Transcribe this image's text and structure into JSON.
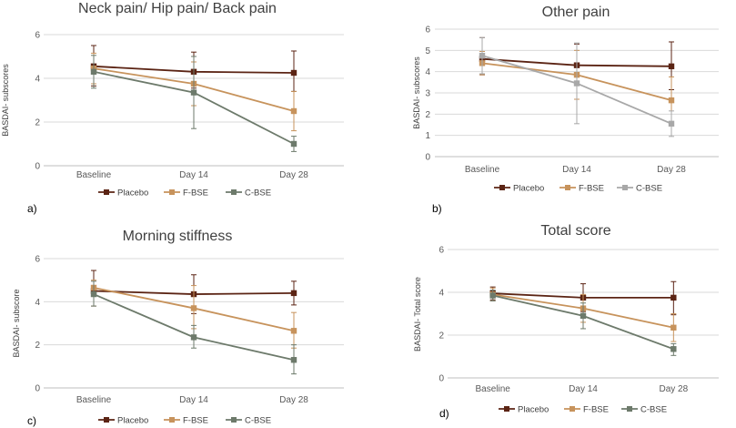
{
  "chart_data": [
    {
      "type": "line",
      "panel_label": "a)",
      "title": "Neck pain/ Hip pain/ Back pain",
      "ylabel": "BASDAI- subscores",
      "xlabel": "",
      "categories": [
        "Baseline",
        "Day 14",
        "Day 28"
      ],
      "ylim": [
        0,
        6
      ],
      "yticks": [
        0,
        2,
        4,
        6
      ],
      "series": [
        {
          "name": "Placebo",
          "color": "#5b2414",
          "values": [
            4.55,
            4.3,
            4.25
          ],
          "err_low": [
            3.65,
            3.55,
            3.4
          ],
          "err_high": [
            5.5,
            5.2,
            5.25
          ]
        },
        {
          "name": "F-BSE",
          "color": "#c7935c",
          "values": [
            4.45,
            3.75,
            2.5
          ],
          "err_low": [
            3.75,
            2.75,
            1.6
          ],
          "err_high": [
            5.15,
            4.75,
            3.4
          ]
        },
        {
          "name": "C-BSE",
          "color": "#6d7a6b",
          "values": [
            4.3,
            3.35,
            1.0
          ],
          "err_low": [
            3.55,
            1.7,
            0.65
          ],
          "err_high": [
            5.05,
            5.0,
            1.35
          ]
        }
      ]
    },
    {
      "type": "line",
      "panel_label": "b)",
      "title": "Other pain",
      "ylabel": "BASDAI- subscores",
      "xlabel": "",
      "categories": [
        "Baseline",
        "Day 14",
        "Day 28"
      ],
      "ylim": [
        0,
        6
      ],
      "yticks": [
        0,
        1,
        2,
        3,
        4,
        5,
        6
      ],
      "series": [
        {
          "name": "Placebo",
          "color": "#5b2414",
          "values": [
            4.6,
            4.3,
            4.25
          ],
          "err_low": [
            3.85,
            3.35,
            3.15
          ],
          "err_high": [
            5.6,
            5.3,
            5.4
          ]
        },
        {
          "name": "F-BSE",
          "color": "#c7935c",
          "values": [
            4.4,
            3.85,
            2.65
          ],
          "err_low": [
            3.85,
            2.7,
            1.55
          ],
          "err_high": [
            4.95,
            5.0,
            3.75
          ]
        },
        {
          "name": "C-BSE",
          "color": "#a8a8a8",
          "values": [
            4.75,
            3.45,
            1.55
          ],
          "err_low": [
            3.9,
            1.55,
            0.95
          ],
          "err_high": [
            5.6,
            5.35,
            2.15
          ]
        }
      ]
    },
    {
      "type": "line",
      "panel_label": "c)",
      "title": "Morning stiffness",
      "ylabel": "BASDAI- subscore",
      "xlabel": "",
      "categories": [
        "Baseline",
        "Day 14",
        "Day 28"
      ],
      "ylim": [
        0,
        6
      ],
      "yticks": [
        0,
        2,
        4,
        6
      ],
      "series": [
        {
          "name": "Placebo",
          "color": "#5b2414",
          "values": [
            4.5,
            4.35,
            4.4
          ],
          "err_low": [
            3.8,
            3.45,
            3.85
          ],
          "err_high": [
            5.45,
            5.25,
            4.95
          ]
        },
        {
          "name": "F-BSE",
          "color": "#c7935c",
          "values": [
            4.65,
            3.7,
            2.65
          ],
          "err_low": [
            3.8,
            2.75,
            1.85
          ],
          "err_high": [
            5.0,
            4.75,
            3.5
          ]
        },
        {
          "name": "C-BSE",
          "color": "#6d7a6b",
          "values": [
            4.35,
            2.35,
            1.3
          ],
          "err_low": [
            3.8,
            1.85,
            0.65
          ],
          "err_high": [
            4.95,
            2.9,
            2.0
          ]
        }
      ]
    },
    {
      "type": "line",
      "panel_label": "d)",
      "title": "Total score",
      "ylabel": "BASDAI- Total score",
      "xlabel": "",
      "categories": [
        "Baseline",
        "Day 14",
        "Day 28"
      ],
      "ylim": [
        0,
        6
      ],
      "yticks": [
        0,
        2,
        4,
        6
      ],
      "series": [
        {
          "name": "Placebo",
          "color": "#5b2414",
          "values": [
            3.95,
            3.75,
            3.75
          ],
          "err_low": [
            3.65,
            3.1,
            2.95
          ],
          "err_high": [
            4.25,
            4.4,
            4.5
          ]
        },
        {
          "name": "F-BSE",
          "color": "#c7935c",
          "values": [
            3.9,
            3.25,
            2.35
          ],
          "err_low": [
            3.6,
            2.6,
            1.7
          ],
          "err_high": [
            4.2,
            3.9,
            3.0
          ]
        },
        {
          "name": "C-BSE",
          "color": "#6d7a6b",
          "values": [
            3.85,
            2.9,
            1.35
          ],
          "err_low": [
            3.6,
            2.3,
            1.05
          ],
          "err_high": [
            4.1,
            3.5,
            1.6
          ]
        }
      ]
    }
  ]
}
